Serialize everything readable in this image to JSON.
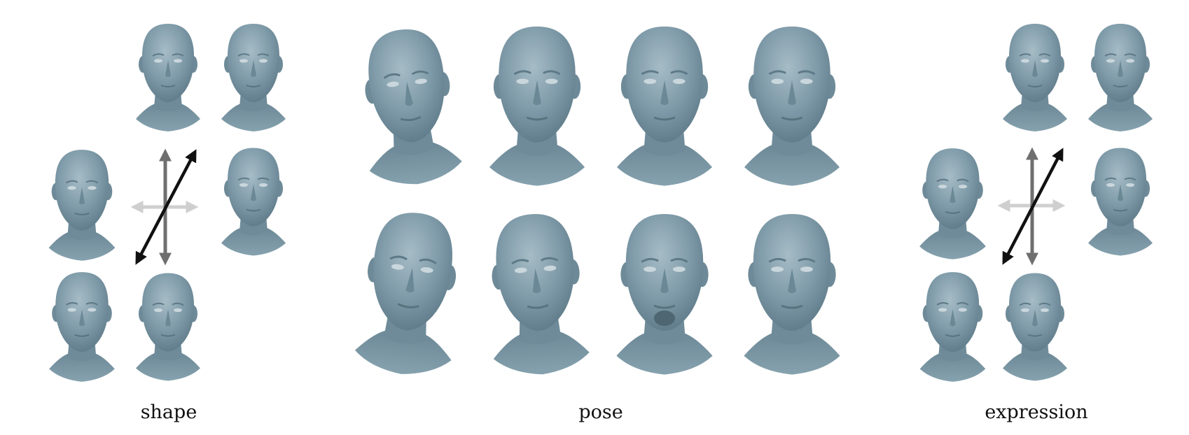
{
  "captions": {
    "shape": "shape",
    "pose": "pose",
    "expression": "expression"
  },
  "colors": {
    "head_fill": "#7e9aa8",
    "head_shade": "#5f7c8a",
    "head_highlight": "#9db5c0",
    "arrow_black": "#111111",
    "arrow_dark_gray": "#6f6f6f",
    "arrow_light_gray": "#cfcfcf"
  },
  "panels": [
    {
      "name": "shape",
      "head_count": 6,
      "arrows": [
        "vertical-dark-gray",
        "horizontal-light-gray",
        "diagonal-black"
      ]
    },
    {
      "name": "pose",
      "head_count": 8,
      "arrows": []
    },
    {
      "name": "expression",
      "head_count": 6,
      "arrows": [
        "vertical-dark-gray",
        "horizontal-light-gray",
        "diagonal-black"
      ]
    }
  ]
}
